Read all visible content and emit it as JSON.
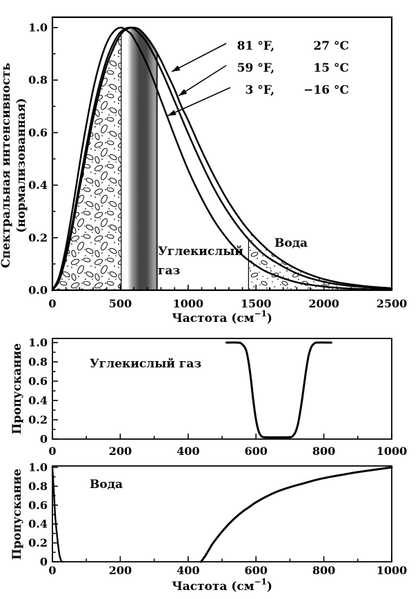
{
  "top": {
    "ylabel_line1": "Спектральная интенсивность",
    "ylabel_line2": "(нормализованная)",
    "xlabel_base": "Частота (см",
    "xlabel_sup": "−1",
    "xlabel_close": ")",
    "x_tick_labels": [
      "0",
      "500",
      "1000",
      "1500",
      "2000",
      "2500"
    ],
    "y_tick_labels": [
      "0.0",
      "0.2",
      "0.4",
      "0.6",
      "0.8",
      "1.0"
    ],
    "co2_region_label_line1": "Углекислый",
    "co2_region_label_line2": "газ",
    "water_region_label": "Вода",
    "annotations": [
      {
        "f": "81 °F,",
        "c": "27 °C"
      },
      {
        "f": "59 °F,",
        "c": "15 °C"
      },
      {
        "f": "3 °F,",
        "c": "−16 °C"
      }
    ]
  },
  "co2": {
    "label": "Углекислый газ",
    "ylabel": "Пропускание",
    "x_tick_labels": [
      "0",
      "200",
      "400",
      "600",
      "800",
      "1000"
    ],
    "y_tick_labels": [
      "0",
      "0.2",
      "0.4",
      "0.6",
      "0.8",
      "1.0"
    ]
  },
  "water": {
    "label": "Вода",
    "ylabel": "Пропускание",
    "xlabel_base": "Частота (см",
    "xlabel_sup": "−1",
    "xlabel_close": ")",
    "x_tick_labels": [
      "0",
      "200",
      "400",
      "600",
      "800",
      "1000"
    ],
    "y_tick_labels": [
      "0",
      "0.2",
      "0.4",
      "0.6",
      "0.8",
      "1.0"
    ]
  },
  "chart_data": [
    {
      "type": "line",
      "title": "",
      "xlabel": "Частота (см−1)",
      "ylabel": "Спектральная интенсивность (нормализованная)",
      "xlim": [
        0,
        2500
      ],
      "ylim": [
        0,
        1.0
      ],
      "x_major_ticks": [
        0,
        500,
        1000,
        1500,
        2000,
        2500
      ],
      "x_minor_step": 100,
      "y_major_ticks": [
        0,
        0.2,
        0.4,
        0.6,
        0.8,
        1.0
      ],
      "y_minor_step": 0.1,
      "legend_position": "none",
      "series": [
        {
          "name": "81 °F, 27 °C",
          "points": [
            [
              0,
              0
            ],
            [
              50,
              0.037
            ],
            [
              100,
              0.126
            ],
            [
              150,
              0.245
            ],
            [
              200,
              0.386
            ],
            [
              250,
              0.52
            ],
            [
              300,
              0.652
            ],
            [
              350,
              0.763
            ],
            [
              400,
              0.856
            ],
            [
              450,
              0.922
            ],
            [
              500,
              0.971
            ],
            [
              540,
              0.992
            ],
            [
              588,
              1.0
            ],
            [
              640,
              0.993
            ],
            [
              700,
              0.96
            ],
            [
              750,
              0.922
            ],
            [
              800,
              0.875
            ],
            [
              850,
              0.82
            ],
            [
              900,
              0.765
            ],
            [
              950,
              0.7
            ],
            [
              1000,
              0.647
            ],
            [
              1100,
              0.531
            ],
            [
              1200,
              0.426
            ],
            [
              1300,
              0.334
            ],
            [
              1400,
              0.258
            ],
            [
              1500,
              0.197
            ],
            [
              1600,
              0.148
            ],
            [
              1700,
              0.11
            ],
            [
              1800,
              0.081
            ],
            [
              1900,
              0.059
            ],
            [
              2000,
              0.042
            ],
            [
              2100,
              0.03
            ],
            [
              2200,
              0.022
            ],
            [
              2350,
              0.013
            ],
            [
              2500,
              0.008
            ]
          ]
        },
        {
          "name": "59 °F, 15 °C",
          "points": [
            [
              0,
              0
            ],
            [
              50,
              0.04
            ],
            [
              100,
              0.135
            ],
            [
              150,
              0.262
            ],
            [
              200,
              0.408
            ],
            [
              250,
              0.547
            ],
            [
              300,
              0.68
            ],
            [
              350,
              0.79
            ],
            [
              400,
              0.879
            ],
            [
              450,
              0.941
            ],
            [
              500,
              0.982
            ],
            [
              565,
              1.0
            ],
            [
              620,
              0.988
            ],
            [
              700,
              0.939
            ],
            [
              800,
              0.84
            ],
            [
              900,
              0.72
            ],
            [
              1000,
              0.597
            ],
            [
              1100,
              0.482
            ],
            [
              1200,
              0.378
            ],
            [
              1300,
              0.292
            ],
            [
              1400,
              0.221
            ],
            [
              1500,
              0.164
            ],
            [
              1600,
              0.121
            ],
            [
              1800,
              0.064
            ],
            [
              2000,
              0.032
            ],
            [
              2200,
              0.016
            ],
            [
              2500,
              0.005
            ]
          ]
        },
        {
          "name": "3 °F, −16 °C",
          "points": [
            [
              0,
              0
            ],
            [
              50,
              0.052
            ],
            [
              100,
              0.164
            ],
            [
              150,
              0.313
            ],
            [
              200,
              0.478
            ],
            [
              250,
              0.63
            ],
            [
              300,
              0.763
            ],
            [
              350,
              0.867
            ],
            [
              400,
              0.941
            ],
            [
              450,
              0.984
            ],
            [
              504,
              1.0
            ],
            [
              560,
              0.984
            ],
            [
              600,
              0.959
            ],
            [
              700,
              0.857
            ],
            [
              800,
              0.724
            ],
            [
              900,
              0.587
            ],
            [
              1000,
              0.458
            ],
            [
              1100,
              0.349
            ],
            [
              1200,
              0.258
            ],
            [
              1300,
              0.188
            ],
            [
              1400,
              0.133
            ],
            [
              1500,
              0.094
            ],
            [
              1600,
              0.065
            ],
            [
              1800,
              0.03
            ],
            [
              2000,
              0.014
            ],
            [
              2200,
              0.006
            ],
            [
              2500,
              0.002
            ]
          ]
        }
      ],
      "regions": [
        {
          "name": "surface-emission-window",
          "x1": 0,
          "x2": 507,
          "fill": "pebble-texture"
        },
        {
          "name": "co2-absorption-band",
          "label": "Углекислый газ",
          "x1": 553,
          "x2": 771,
          "fill": "gray-gradient"
        },
        {
          "name": "water-absorption-band",
          "label": "Вода",
          "x1": 1445,
          "x2": 2150,
          "fill": "dot-texture"
        }
      ]
    },
    {
      "type": "line",
      "title": "Углекислый газ",
      "xlabel": "Частота (см−1)",
      "ylabel": "Пропускание",
      "xlim": [
        0,
        1000
      ],
      "ylim": [
        0,
        1.0
      ],
      "x_major_ticks": [
        0,
        200,
        400,
        600,
        800,
        1000
      ],
      "x_minor_step": 100,
      "y_major_ticks": [
        0,
        0.2,
        0.4,
        0.6,
        0.8,
        1.0
      ],
      "y_minor_step": 0.1,
      "series": [
        {
          "name": "Пропускание CO2",
          "points": [
            [
              513,
              1.0
            ],
            [
              545,
              1.0
            ],
            [
              557,
              0.99
            ],
            [
              570,
              0.93
            ],
            [
              578,
              0.8
            ],
            [
              585,
              0.62
            ],
            [
              592,
              0.4
            ],
            [
              600,
              0.2
            ],
            [
              608,
              0.08
            ],
            [
              616,
              0.03
            ],
            [
              625,
              0.02
            ],
            [
              660,
              0.018
            ],
            [
              700,
              0.02
            ],
            [
              708,
              0.03
            ],
            [
              716,
              0.07
            ],
            [
              724,
              0.16
            ],
            [
              732,
              0.32
            ],
            [
              740,
              0.52
            ],
            [
              748,
              0.72
            ],
            [
              756,
              0.88
            ],
            [
              764,
              0.96
            ],
            [
              772,
              0.99
            ],
            [
              780,
              1.0
            ],
            [
              822,
              1.0
            ]
          ]
        }
      ]
    },
    {
      "type": "line",
      "title": "Вода",
      "xlabel": "Частота (см−1)",
      "ylabel": "Пропускание",
      "xlim": [
        0,
        1000
      ],
      "ylim": [
        0,
        1.0
      ],
      "x_major_ticks": [
        0,
        200,
        400,
        600,
        800,
        1000
      ],
      "x_minor_step": 100,
      "y_major_ticks": [
        0,
        0.2,
        0.4,
        0.6,
        0.8,
        1.0
      ],
      "y_minor_step": 0.1,
      "series": [
        {
          "name": "Пропускание H2O",
          "segments": [
            [
              [
                0,
                1.0
              ],
              [
                3,
                0.82
              ],
              [
                6,
                0.62
              ],
              [
                9,
                0.45
              ],
              [
                13,
                0.3
              ],
              [
                17,
                0.17
              ],
              [
                21,
                0.07
              ],
              [
                26,
                0.01
              ],
              [
                30,
                0
              ]
            ],
            [
              [
                438,
                0
              ],
              [
                450,
                0.06
              ],
              [
                460,
                0.12
              ],
              [
                470,
                0.18
              ],
              [
                480,
                0.23
              ],
              [
                500,
                0.32
              ],
              [
                520,
                0.4
              ],
              [
                540,
                0.47
              ],
              [
                560,
                0.53
              ],
              [
                580,
                0.58
              ],
              [
                600,
                0.63
              ],
              [
                630,
                0.69
              ],
              [
                660,
                0.74
              ],
              [
                700,
                0.79
              ],
              [
                740,
                0.83
              ],
              [
                780,
                0.87
              ],
              [
                820,
                0.9
              ],
              [
                860,
                0.925
              ],
              [
                900,
                0.95
              ],
              [
                940,
                0.97
              ],
              [
                970,
                0.985
              ],
              [
                1000,
                1.0
              ]
            ]
          ]
        }
      ]
    }
  ],
  "colors": {
    "ink": "#000000",
    "background": "#ffffff",
    "band_dark": "#454545",
    "band_light": "#ffffff"
  }
}
